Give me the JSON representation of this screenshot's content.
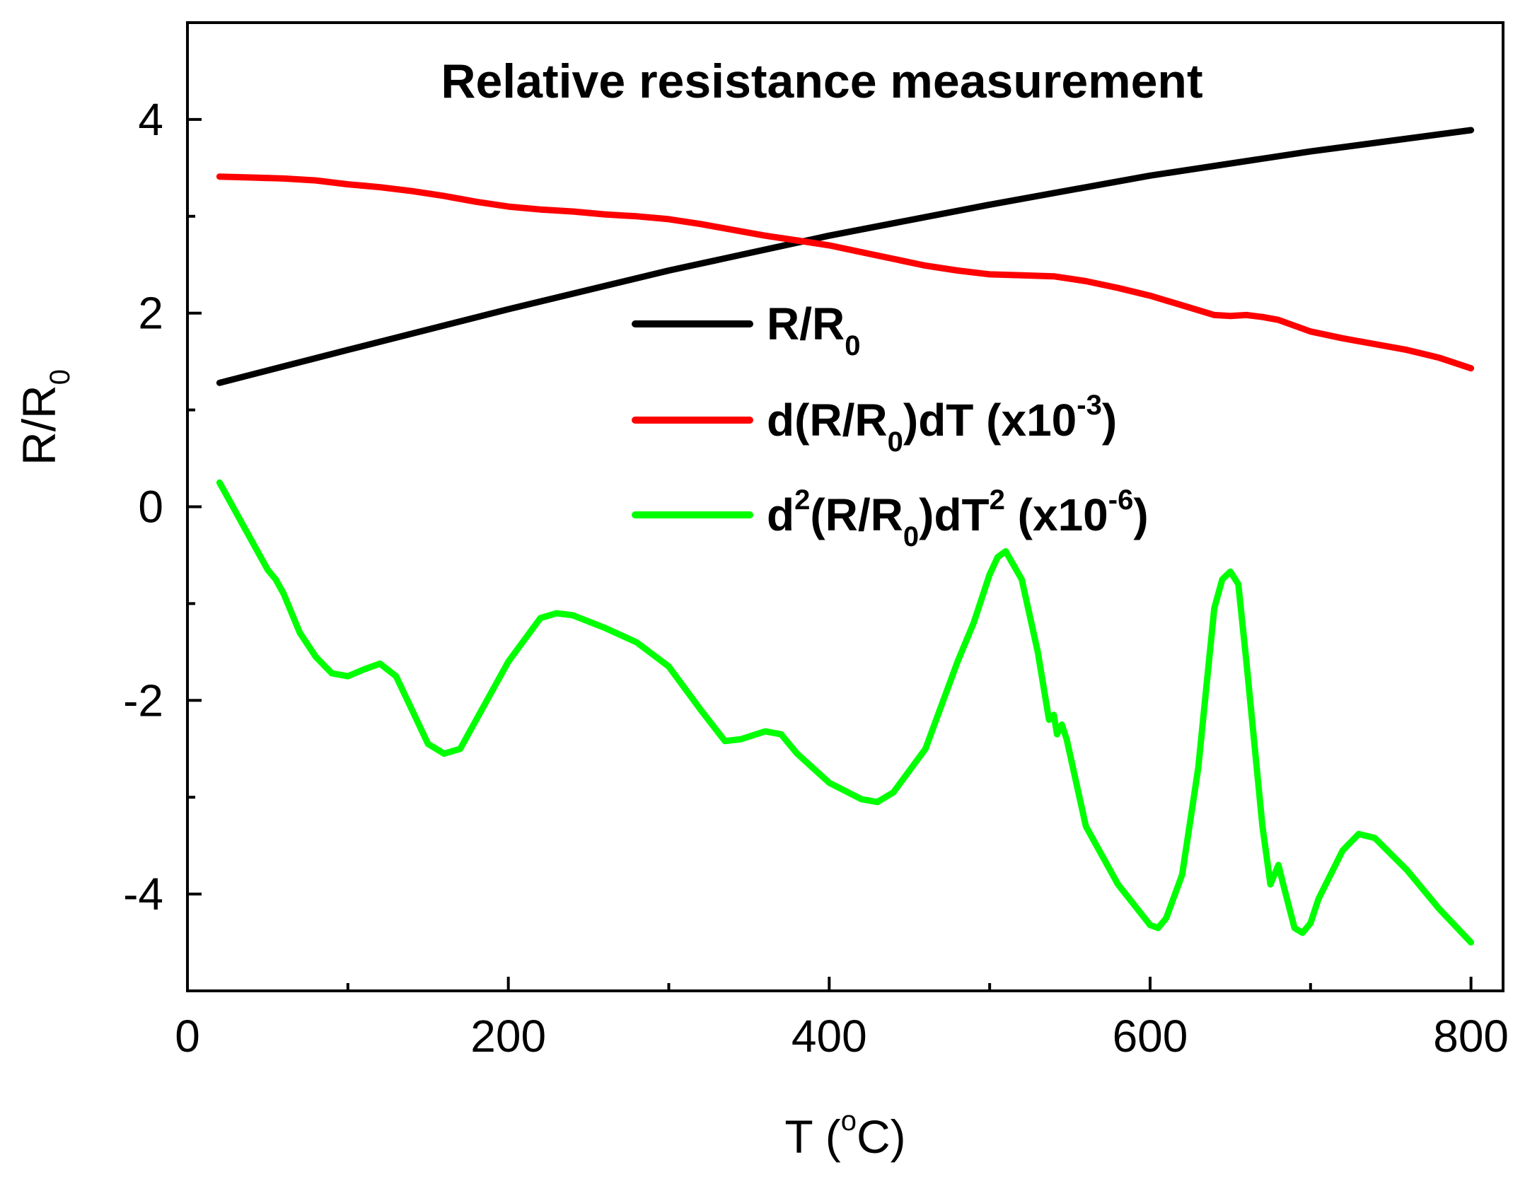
{
  "chart_data": {
    "type": "line",
    "title": "Relative resistance measurement",
    "xlabel": {
      "main": "T (",
      "sup": "o",
      "tail": "C)"
    },
    "ylabel": {
      "main": "R/R",
      "sub": "0"
    },
    "xlim": [
      0,
      820
    ],
    "ylim": [
      -5,
      5
    ],
    "xticks": [
      0,
      200,
      400,
      600,
      800
    ],
    "xtick_labels": [
      "0",
      "200",
      "400",
      "600",
      "800"
    ],
    "x_minor_ticks": [
      100,
      300,
      500,
      700
    ],
    "yticks": [
      -4,
      -2,
      0,
      2,
      4
    ],
    "ytick_labels": [
      "-4",
      "-2",
      "0",
      "2",
      "4"
    ],
    "y_minor_ticks": [
      -3,
      -1,
      1,
      3
    ],
    "legend_position": "center-right",
    "legend": [
      {
        "color": "#000000",
        "parts": [
          [
            "R/R",
            ""
          ],
          [
            "0",
            "sub"
          ]
        ]
      },
      {
        "color": "#ff0000",
        "parts": [
          [
            "d(R/R",
            ""
          ],
          [
            "0",
            "sub"
          ],
          [
            ")dT (x10",
            ""
          ],
          [
            "-3",
            "sup"
          ],
          [
            ")",
            ""
          ]
        ]
      },
      {
        "color": "#00ff00",
        "parts": [
          [
            "d",
            ""
          ],
          [
            "2",
            "sup"
          ],
          [
            "(R/R",
            ""
          ],
          [
            "0",
            "sub"
          ],
          [
            ")dT",
            ""
          ],
          [
            "2",
            "sup"
          ],
          [
            " (x10",
            ""
          ],
          [
            "-6",
            "sup"
          ],
          [
            ")",
            ""
          ]
        ]
      }
    ],
    "series": [
      {
        "name": "R/R0",
        "color": "#000000",
        "x": [
          20,
          100,
          200,
          300,
          400,
          500,
          600,
          700,
          800
        ],
        "y": [
          1.28,
          1.62,
          2.04,
          2.44,
          2.8,
          3.12,
          3.42,
          3.67,
          3.89
        ]
      },
      {
        "name": "d(R/R0)dT (x10-3)",
        "color": "#ff0000",
        "x": [
          20,
          40,
          60,
          80,
          100,
          120,
          140,
          160,
          180,
          200,
          220,
          240,
          260,
          280,
          300,
          320,
          340,
          360,
          380,
          400,
          420,
          440,
          460,
          480,
          500,
          520,
          540,
          560,
          580,
          600,
          620,
          640,
          650,
          660,
          670,
          680,
          700,
          720,
          740,
          760,
          780,
          800
        ],
        "y": [
          3.41,
          3.4,
          3.39,
          3.37,
          3.33,
          3.3,
          3.26,
          3.21,
          3.15,
          3.1,
          3.07,
          3.05,
          3.02,
          3.0,
          2.97,
          2.92,
          2.86,
          2.8,
          2.75,
          2.7,
          2.63,
          2.56,
          2.49,
          2.44,
          2.4,
          2.39,
          2.38,
          2.33,
          2.26,
          2.18,
          2.08,
          1.98,
          1.97,
          1.98,
          1.96,
          1.93,
          1.81,
          1.74,
          1.68,
          1.62,
          1.54,
          1.43
        ]
      },
      {
        "name": "d2(R/R0)dT2 (x10-6)",
        "color": "#00ff00",
        "x": [
          20,
          35,
          50,
          55,
          60,
          70,
          80,
          90,
          100,
          110,
          120,
          130,
          140,
          150,
          160,
          170,
          180,
          200,
          220,
          230,
          240,
          260,
          280,
          300,
          320,
          335,
          345,
          360,
          370,
          380,
          400,
          420,
          430,
          440,
          460,
          480,
          490,
          500,
          505,
          510,
          520,
          530,
          537,
          540,
          542,
          545,
          548,
          560,
          580,
          600,
          605,
          610,
          620,
          630,
          640,
          645,
          650,
          655,
          660,
          670,
          675,
          680,
          683,
          690,
          695,
          700,
          705,
          720,
          730,
          740,
          760,
          780,
          800
        ],
        "y": [
          0.25,
          -0.2,
          -0.65,
          -0.75,
          -0.9,
          -1.3,
          -1.55,
          -1.72,
          -1.75,
          -1.68,
          -1.62,
          -1.75,
          -2.1,
          -2.45,
          -2.55,
          -2.5,
          -2.2,
          -1.6,
          -1.15,
          -1.1,
          -1.12,
          -1.25,
          -1.4,
          -1.65,
          -2.1,
          -2.42,
          -2.4,
          -2.32,
          -2.35,
          -2.55,
          -2.85,
          -3.02,
          -3.05,
          -2.95,
          -2.5,
          -1.6,
          -1.2,
          -0.7,
          -0.52,
          -0.46,
          -0.75,
          -1.5,
          -2.2,
          -2.15,
          -2.35,
          -2.25,
          -2.4,
          -3.3,
          -3.9,
          -4.32,
          -4.35,
          -4.25,
          -3.8,
          -2.7,
          -1.05,
          -0.75,
          -0.67,
          -0.8,
          -1.6,
          -3.3,
          -3.9,
          -3.7,
          -3.9,
          -4.35,
          -4.4,
          -4.3,
          -4.05,
          -3.55,
          -3.38,
          -3.42,
          -3.75,
          -4.15,
          -4.5
        ]
      }
    ]
  }
}
